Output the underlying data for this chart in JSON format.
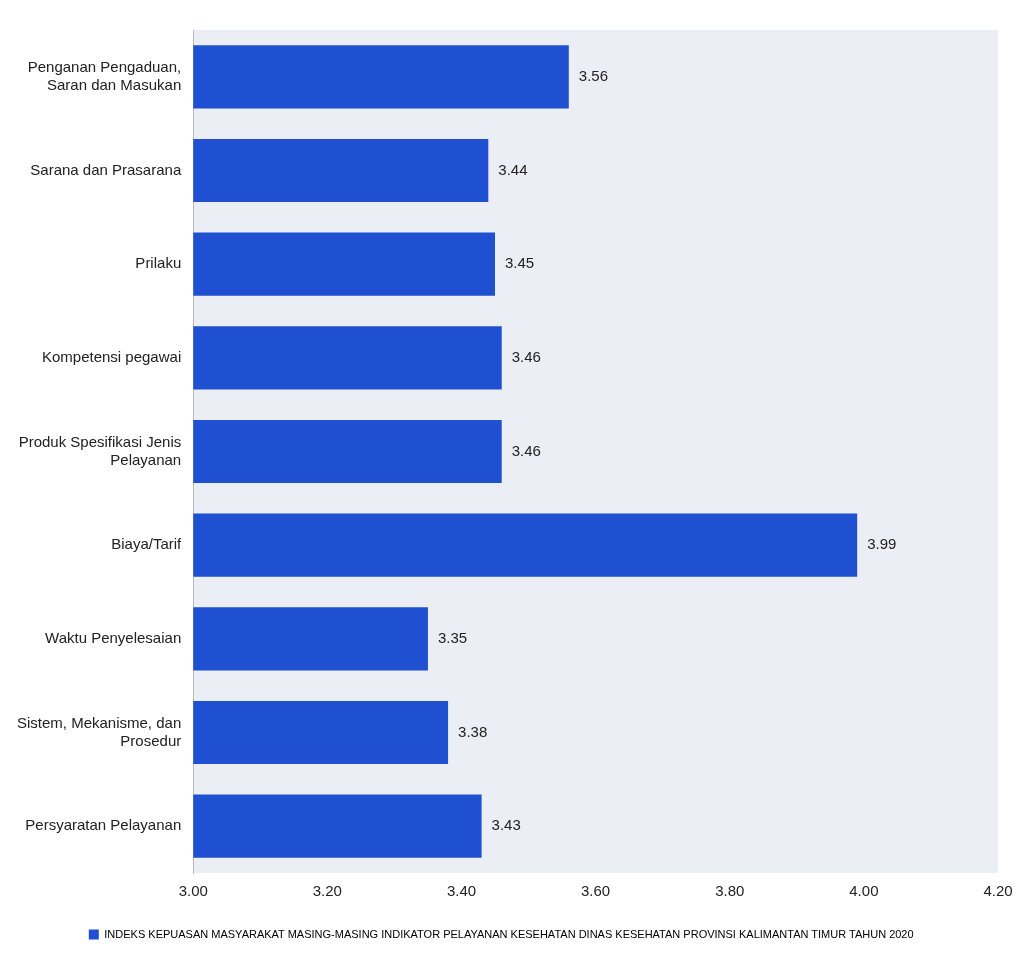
{
  "chart_data": {
    "type": "bar",
    "orientation": "horizontal",
    "categories": [
      "Penganan Pengaduan, Saran dan Masukan",
      "Sarana dan Prasarana",
      "Prilaku",
      "Kompetensi pegawai",
      "Produk Spesifikasi Jenis Pelayanan",
      "Biaya/Tarif",
      "Waktu Penyelesaian",
      "Sistem, Mekanisme, dan Prosedur",
      "Persyaratan Pelayanan"
    ],
    "series": [
      {
        "name": "INDEKS KEPUASAN MASYARAKAT MASING-MASING INDIKATOR PELAYANAN KESEHATAN DINAS KESEHATAN PROVINSI KALIMANTAN TIMUR TAHUN 2020",
        "color": "#1f50d2",
        "values": [
          3.56,
          3.44,
          3.45,
          3.46,
          3.46,
          3.99,
          3.35,
          3.38,
          3.43
        ]
      }
    ],
    "xlim": [
      3.0,
      4.2
    ],
    "xticks": [
      {
        "value": 3.0,
        "label": "3.00"
      },
      {
        "value": 3.2,
        "label": "3.20"
      },
      {
        "value": 3.4,
        "label": "3.40"
      },
      {
        "value": 3.6,
        "label": "3.60"
      },
      {
        "value": 3.8,
        "label": "3.80"
      },
      {
        "value": 4.0,
        "label": "4.00"
      },
      {
        "value": 4.2,
        "label": "4.20"
      }
    ],
    "data_labels": true,
    "grid": false,
    "legend": "bottom"
  }
}
